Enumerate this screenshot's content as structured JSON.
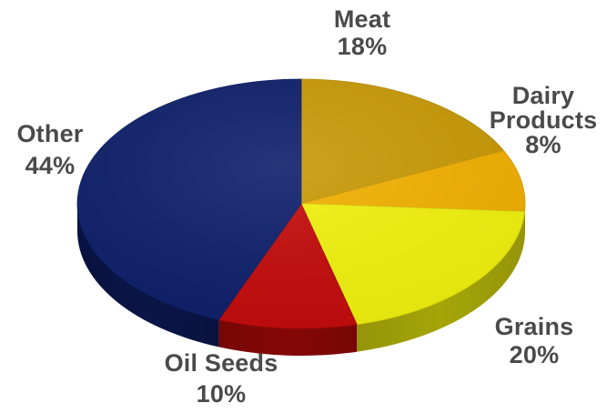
{
  "chart_data": {
    "type": "pie",
    "three_d": true,
    "legend": "none",
    "start": "12 o'clock",
    "direction": "clockwise",
    "slices": [
      {
        "name": "Meat",
        "value": 18,
        "label_lines": [
          "Meat",
          "18%"
        ],
        "color": "#c89a06"
      },
      {
        "name": "Dairy Products",
        "value": 8,
        "label_lines": [
          "Dairy",
          "Products",
          "8%"
        ],
        "color": "#f2b000"
      },
      {
        "name": "Grains",
        "value": 20,
        "label_lines": [
          "Grains",
          "20%"
        ],
        "color": "#f2f20d"
      },
      {
        "name": "Oil Seeds",
        "value": 10,
        "label_lines": [
          "Oil Seeds",
          "10%"
        ],
        "color": "#c40a0a"
      },
      {
        "name": "Other",
        "value": 44,
        "label_lines": [
          "Other",
          "44%"
        ],
        "color": "#0e1f6a"
      }
    ]
  }
}
